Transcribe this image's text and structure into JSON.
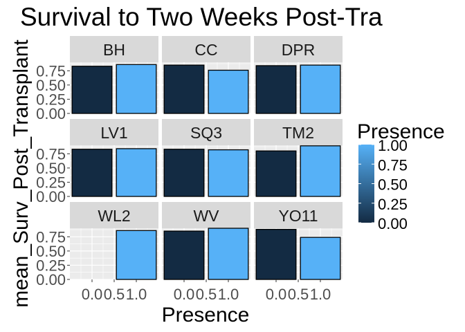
{
  "chart_data": {
    "type": "bar",
    "title": "Survival to Two Weeks Post-Tra",
    "xlabel": "Presence",
    "ylabel": "mean_Surv_Post_Transplant",
    "x_tick_labels": [
      "0.0",
      "0.5",
      "1.0"
    ],
    "y_tick_labels": [
      "0.00",
      "0.25",
      "0.50",
      "0.75"
    ],
    "xlim": [
      -0.5,
      1.5
    ],
    "ylim": [
      0,
      0.9
    ],
    "grid": true,
    "facet_layout": "3x3",
    "legend": {
      "title": "Presence",
      "position": "right",
      "type": "colorbar",
      "range": [
        0,
        1
      ],
      "tick_labels": [
        "1.00",
        "0.75",
        "0.50",
        "0.25",
        "0.00"
      ],
      "low_color": "#132B43",
      "high_color": "#56B1F7"
    },
    "colors": {
      "presence_0": "#132B43",
      "presence_1": "#56B1F7",
      "panel_bg": "#EBEBEB",
      "strip_bg": "#D9D9D9"
    },
    "panels": [
      {
        "name": "BH",
        "values": [
          0.83,
          0.86
        ]
      },
      {
        "name": "CC",
        "values": [
          0.85,
          0.76
        ]
      },
      {
        "name": "DPR",
        "values": [
          0.84,
          0.85
        ]
      },
      {
        "name": "LV1",
        "values": [
          0.83,
          0.84
        ]
      },
      {
        "name": "SQ3",
        "values": [
          0.83,
          0.82
        ]
      },
      {
        "name": "TM2",
        "values": [
          0.8,
          0.89
        ]
      },
      {
        "name": "WL2",
        "values": [
          null,
          0.86
        ]
      },
      {
        "name": "WV",
        "values": [
          0.85,
          0.9
        ]
      },
      {
        "name": "YO11",
        "values": [
          0.88,
          0.74
        ]
      }
    ]
  }
}
